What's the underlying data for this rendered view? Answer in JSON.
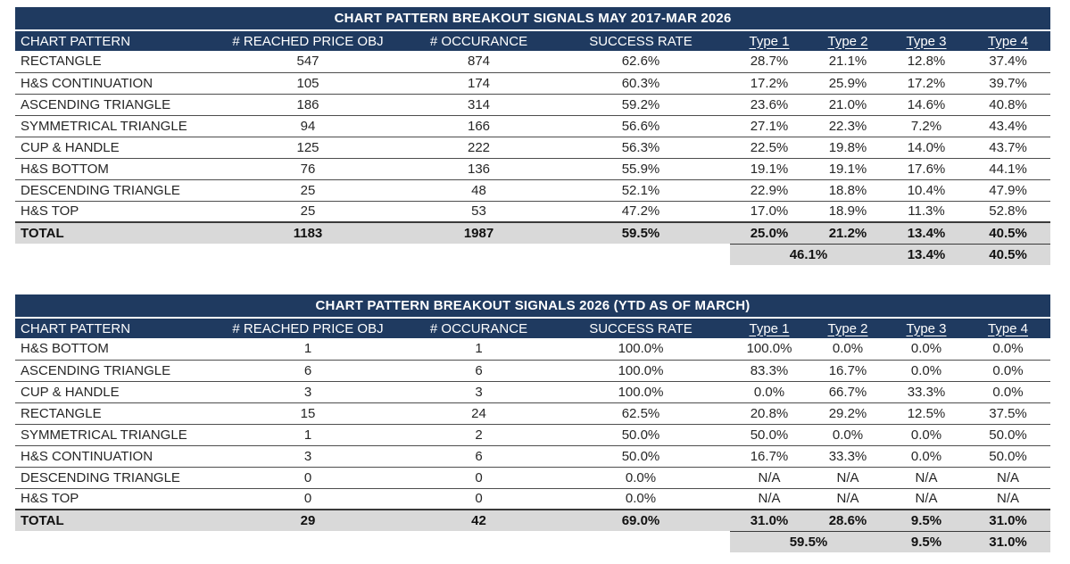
{
  "colors": {
    "header_bg": "#1f3a60",
    "header_text": "#ffffff",
    "total_row_bg": "#d9d9d9",
    "body_text": "#262626",
    "row_divider": "#4d4d4d"
  },
  "chart_data": [
    {
      "type": "table",
      "title": "CHART PATTERN BREAKOUT SIGNALS MAY 2017-MAR 2026",
      "columns": [
        "CHART PATTERN",
        "# REACHED PRICE OBJ",
        "# OCCURANCE",
        "SUCCESS RATE",
        "Type 1",
        "Type 2",
        "Type 3",
        "Type 4"
      ],
      "rows": [
        [
          "RECTANGLE",
          "547",
          "874",
          "62.6%",
          "28.7%",
          "21.1%",
          "12.8%",
          "37.4%"
        ],
        [
          "H&S CONTINUATION",
          "105",
          "174",
          "60.3%",
          "17.2%",
          "25.9%",
          "17.2%",
          "39.7%"
        ],
        [
          "ASCENDING TRIANGLE",
          "186",
          "314",
          "59.2%",
          "23.6%",
          "21.0%",
          "14.6%",
          "40.8%"
        ],
        [
          "SYMMETRICAL TRIANGLE",
          "94",
          "166",
          "56.6%",
          "27.1%",
          "22.3%",
          "7.2%",
          "43.4%"
        ],
        [
          "CUP & HANDLE",
          "125",
          "222",
          "56.3%",
          "22.5%",
          "19.8%",
          "14.0%",
          "43.7%"
        ],
        [
          "H&S BOTTOM",
          "76",
          "136",
          "55.9%",
          "19.1%",
          "19.1%",
          "17.6%",
          "44.1%"
        ],
        [
          "DESCENDING TRIANGLE",
          "25",
          "48",
          "52.1%",
          "22.9%",
          "18.8%",
          "10.4%",
          "47.9%"
        ],
        [
          "H&S TOP",
          "25",
          "53",
          "47.2%",
          "17.0%",
          "18.9%",
          "11.3%",
          "52.8%"
        ]
      ],
      "total_row": [
        "TOTAL",
        "1183",
        "1987",
        "59.5%",
        "25.0%",
        "21.2%",
        "13.4%",
        "40.5%"
      ],
      "summary_row": {
        "type1_2_merged": "46.1%",
        "type3": "13.4%",
        "type4": "40.5%"
      }
    },
    {
      "type": "table",
      "title": "CHART PATTERN BREAKOUT SIGNALS 2026 (YTD AS OF MARCH)",
      "columns": [
        "CHART PATTERN",
        "# REACHED PRICE OBJ",
        "# OCCURANCE",
        "SUCCESS RATE",
        "Type 1",
        "Type 2",
        "Type 3",
        "Type 4"
      ],
      "rows": [
        [
          "H&S BOTTOM",
          "1",
          "1",
          "100.0%",
          "100.0%",
          "0.0%",
          "0.0%",
          "0.0%"
        ],
        [
          "ASCENDING TRIANGLE",
          "6",
          "6",
          "100.0%",
          "83.3%",
          "16.7%",
          "0.0%",
          "0.0%"
        ],
        [
          "CUP & HANDLE",
          "3",
          "3",
          "100.0%",
          "0.0%",
          "66.7%",
          "33.3%",
          "0.0%"
        ],
        [
          "RECTANGLE",
          "15",
          "24",
          "62.5%",
          "20.8%",
          "29.2%",
          "12.5%",
          "37.5%"
        ],
        [
          "SYMMETRICAL TRIANGLE",
          "1",
          "2",
          "50.0%",
          "50.0%",
          "0.0%",
          "0.0%",
          "50.0%"
        ],
        [
          "H&S CONTINUATION",
          "3",
          "6",
          "50.0%",
          "16.7%",
          "33.3%",
          "0.0%",
          "50.0%"
        ],
        [
          "DESCENDING TRIANGLE",
          "0",
          "0",
          "0.0%",
          "N/A",
          "N/A",
          "N/A",
          "N/A"
        ],
        [
          "H&S TOP",
          "0",
          "0",
          "0.0%",
          "N/A",
          "N/A",
          "N/A",
          "N/A"
        ]
      ],
      "total_row": [
        "TOTAL",
        "29",
        "42",
        "69.0%",
        "31.0%",
        "28.6%",
        "9.5%",
        "31.0%"
      ],
      "summary_row": {
        "type1_2_merged": "59.5%",
        "type3": "9.5%",
        "type4": "31.0%"
      }
    }
  ]
}
